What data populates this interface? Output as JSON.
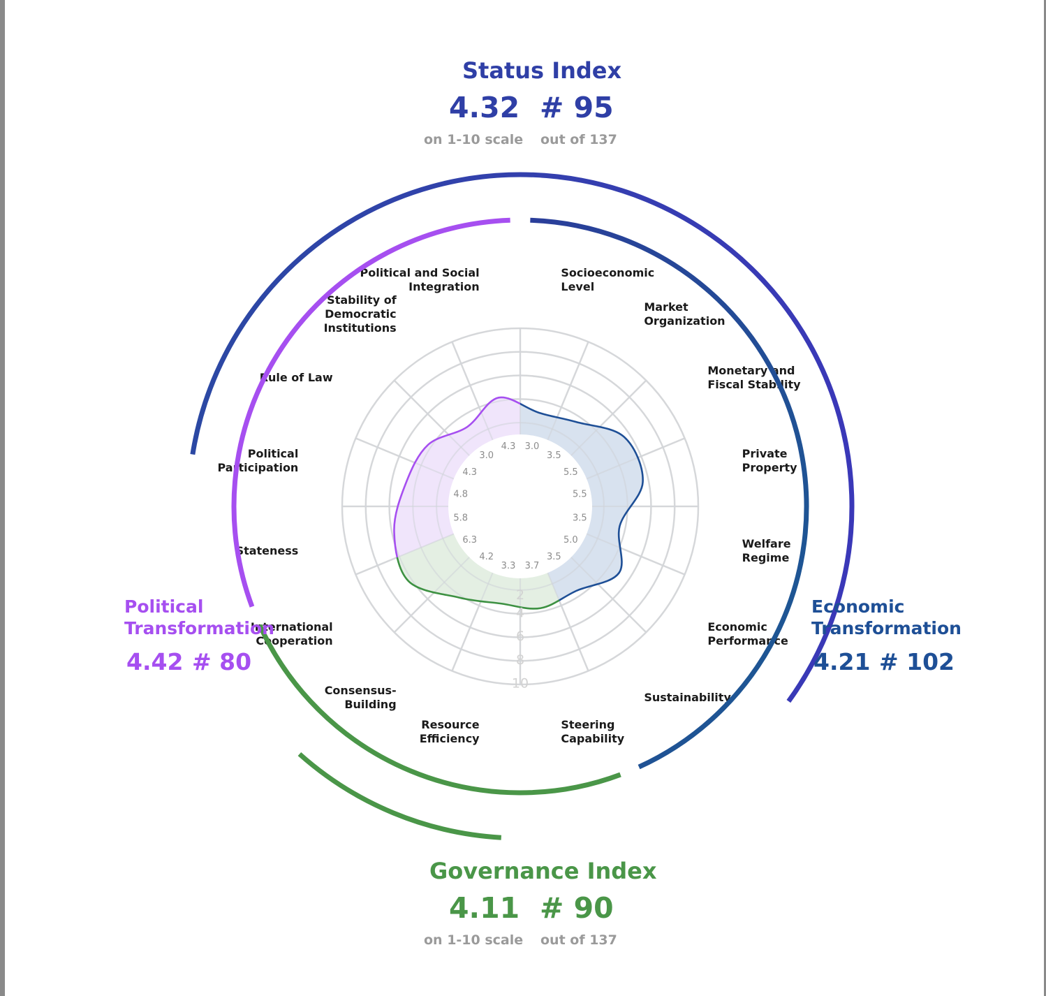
{
  "colors": {
    "status": "#2f3fa6",
    "economic": "#1e4f96",
    "political": "#a64ff0",
    "governance": "#4a9648",
    "grid": "#dcdcdc",
    "tick": "#8c8c8c"
  },
  "status_index": {
    "title": "Status Index",
    "score": "4.32",
    "rank": "# 95",
    "score_note": "on 1-10 scale",
    "rank_note": "out of 137"
  },
  "governance_index": {
    "title": "Governance Index",
    "score": "4.11",
    "rank": "# 90",
    "score_note": "on 1-10 scale",
    "rank_note": "out of 137"
  },
  "political_transformation": {
    "title": "Political\nTransformation",
    "score": "4.42",
    "rank": "# 80"
  },
  "economic_transformation": {
    "title": "Economic\nTransformation",
    "score": "4.21",
    "rank": "# 102"
  },
  "chart_data": {
    "type": "radar",
    "scale": [
      1,
      10
    ],
    "grid_levels": [
      2,
      4,
      6,
      8,
      10
    ],
    "grid": true,
    "categories": [
      {
        "label": "Socioeconomic Level",
        "group": "economic",
        "value": 3.0
      },
      {
        "label": "Market Organization",
        "group": "economic",
        "value": 3.5
      },
      {
        "label": "Monetary and Fiscal Stability",
        "group": "economic",
        "value": 5.5
      },
      {
        "label": "Private Property",
        "group": "economic",
        "value": 5.5
      },
      {
        "label": "Welfare Regime",
        "group": "economic",
        "value": 3.5
      },
      {
        "label": "Economic Performance",
        "group": "economic",
        "value": 5.0
      },
      {
        "label": "Sustainability",
        "group": "economic",
        "value": 3.5
      },
      {
        "label": "Steering Capability",
        "group": "governance",
        "value": 3.7
      },
      {
        "label": "Resource Efficiency",
        "group": "governance",
        "value": 3.3
      },
      {
        "label": "Consensus-Building",
        "group": "governance",
        "value": 4.2
      },
      {
        "label": "International Cooperation",
        "group": "governance",
        "value": 6.3
      },
      {
        "label": "Stateness",
        "group": "political",
        "value": 5.8
      },
      {
        "label": "Political Participation",
        "group": "political",
        "value": 4.8
      },
      {
        "label": "Rule of Law",
        "group": "political",
        "value": 4.3
      },
      {
        "label": "Stability of Democratic Institutions",
        "group": "political",
        "value": 3.0
      },
      {
        "label": "Political and Social Integration",
        "group": "political",
        "value": 4.3
      }
    ],
    "category_lines": [
      [
        "Socioeconomic",
        "Level"
      ],
      [
        "Market",
        "Organization"
      ],
      [
        "Monetary and",
        "Fiscal Stability"
      ],
      [
        "Private",
        "Property"
      ],
      [
        "Welfare",
        "Regime"
      ],
      [
        "Economic",
        "Performance"
      ],
      [
        "Sustainability"
      ],
      [
        "Steering",
        "Capability"
      ],
      [
        "Resource",
        "Efficiency"
      ],
      [
        "Consensus-",
        "Building"
      ],
      [
        "International",
        "Cooperation"
      ],
      [
        "Stateness"
      ],
      [
        "Political",
        "Participation"
      ],
      [
        "Rule of Law"
      ],
      [
        "Stability of",
        "Democratic",
        "Institutions"
      ],
      [
        "Political and Social",
        "Integration"
      ]
    ],
    "value_labels": [
      "3.0",
      "3.5",
      "5.5",
      "5.5",
      "3.5",
      "5.0",
      "3.5",
      "3.7",
      "3.3",
      "4.2",
      "6.3",
      "5.8",
      "4.8",
      "4.3",
      "3.0",
      "4.3"
    ],
    "scale_labels": [
      "2",
      "4",
      "6",
      "8",
      "10"
    ]
  }
}
